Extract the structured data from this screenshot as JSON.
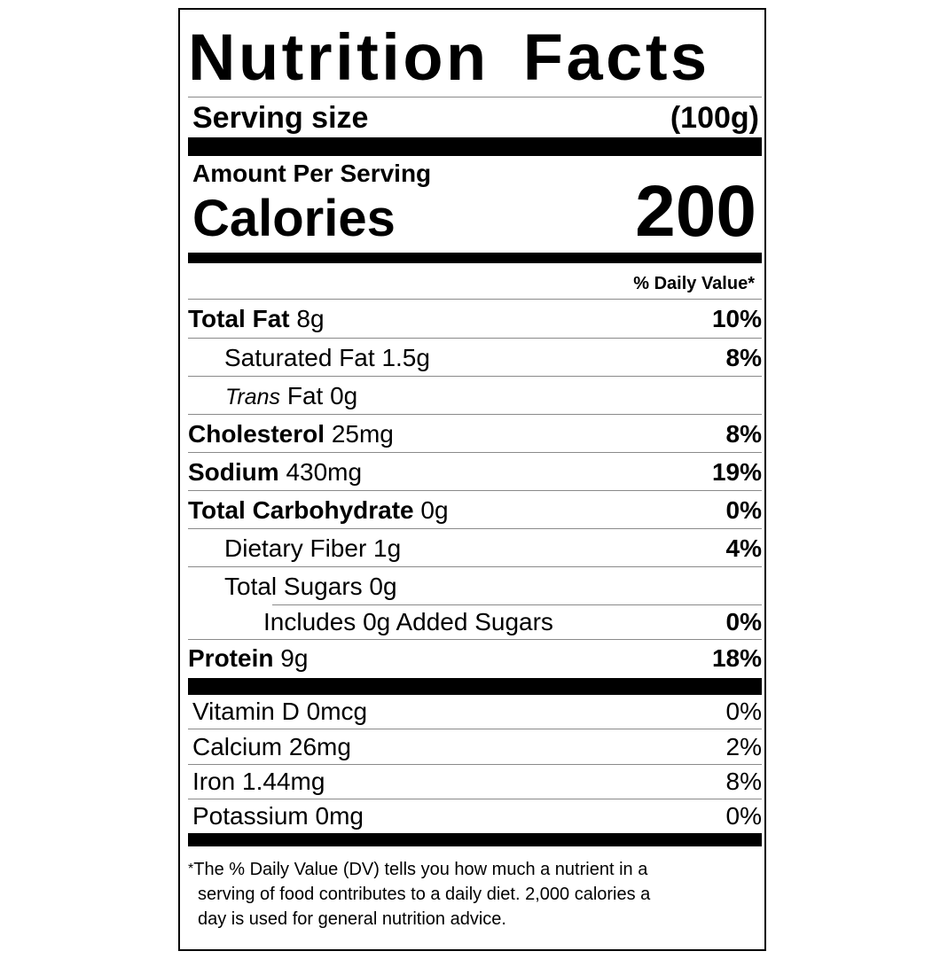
{
  "title": "Nutrition Facts",
  "serving": {
    "label": "Serving size",
    "value": "(100g)"
  },
  "amount_per_serving": "Amount Per Serving",
  "calories": {
    "label": "Calories",
    "value": "200"
  },
  "daily_value_header": "% Daily Value*",
  "nutrients": [
    {
      "name": "Total Fat",
      "amount": "8g",
      "dv": "10%"
    },
    {
      "name": "Saturated Fat",
      "amount": "1.5g",
      "dv": "8%"
    },
    {
      "name_italic": "Trans",
      "name": "Fat",
      "amount": "0g",
      "dv": ""
    },
    {
      "name": "Cholesterol",
      "amount": "25mg",
      "dv": "8%"
    },
    {
      "name": "Sodium",
      "amount": "430mg",
      "dv": "19%"
    },
    {
      "name": "Total Carbohydrate",
      "amount": "0g",
      "dv": "0%"
    },
    {
      "name": "Dietary Fiber",
      "amount": "1g",
      "dv": "4%"
    },
    {
      "name": "Total Sugars",
      "amount": "0g",
      "dv": ""
    },
    {
      "name": "Includes 0g Added Sugars",
      "dv": "0%"
    },
    {
      "name": "Protein",
      "amount": "9g",
      "dv": "18%"
    }
  ],
  "vitamins": [
    {
      "label": "Vitamin D 0mcg",
      "dv": "0%"
    },
    {
      "label": "Calcium 26mg",
      "dv": "2%"
    },
    {
      "label": "Iron 1.44mg",
      "dv": "8%"
    },
    {
      "label": "Potassium 0mg",
      "dv": "0%"
    }
  ],
  "footnote": {
    "star": "*",
    "lines": [
      "The % Daily Value (DV) tells you how much a nutrient in a",
      "serving of food contributes to a daily diet. 2,000 calories a",
      "day is used for general nutrition advice."
    ]
  }
}
